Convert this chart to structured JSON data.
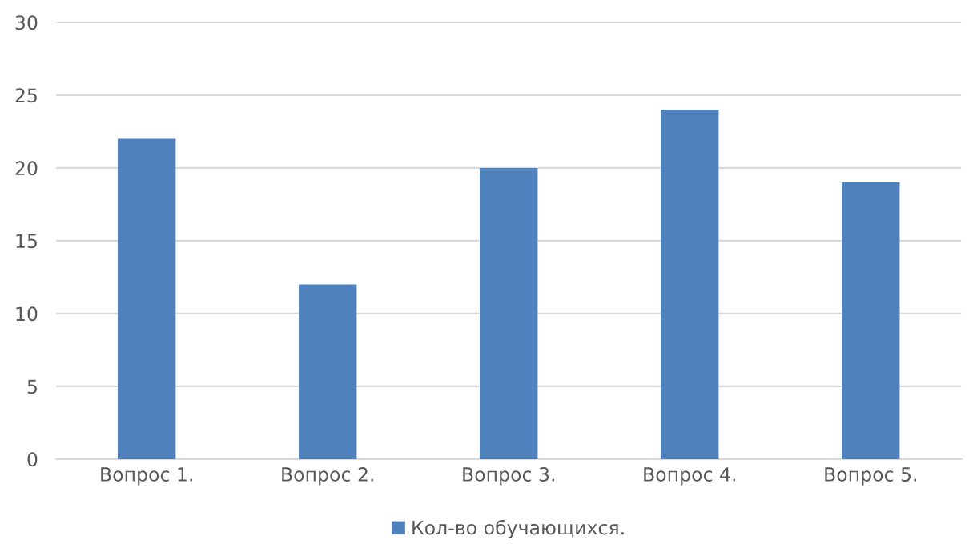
{
  "chart_data": {
    "type": "bar",
    "categories": [
      "Вопрос 1.",
      "Вопрос 2.",
      "Вопрос 3.",
      "Вопрос 4.",
      "Вопрос 5."
    ],
    "series": [
      {
        "name": "Кол-во обучающихся.",
        "color": "#4f81bd",
        "values": [
          22,
          12,
          20,
          24,
          19
        ]
      }
    ],
    "ylim": [
      0,
      30
    ],
    "yticks": [
      0,
      5,
      10,
      15,
      20,
      25,
      30
    ],
    "grid": "y",
    "legend": "bottom"
  }
}
